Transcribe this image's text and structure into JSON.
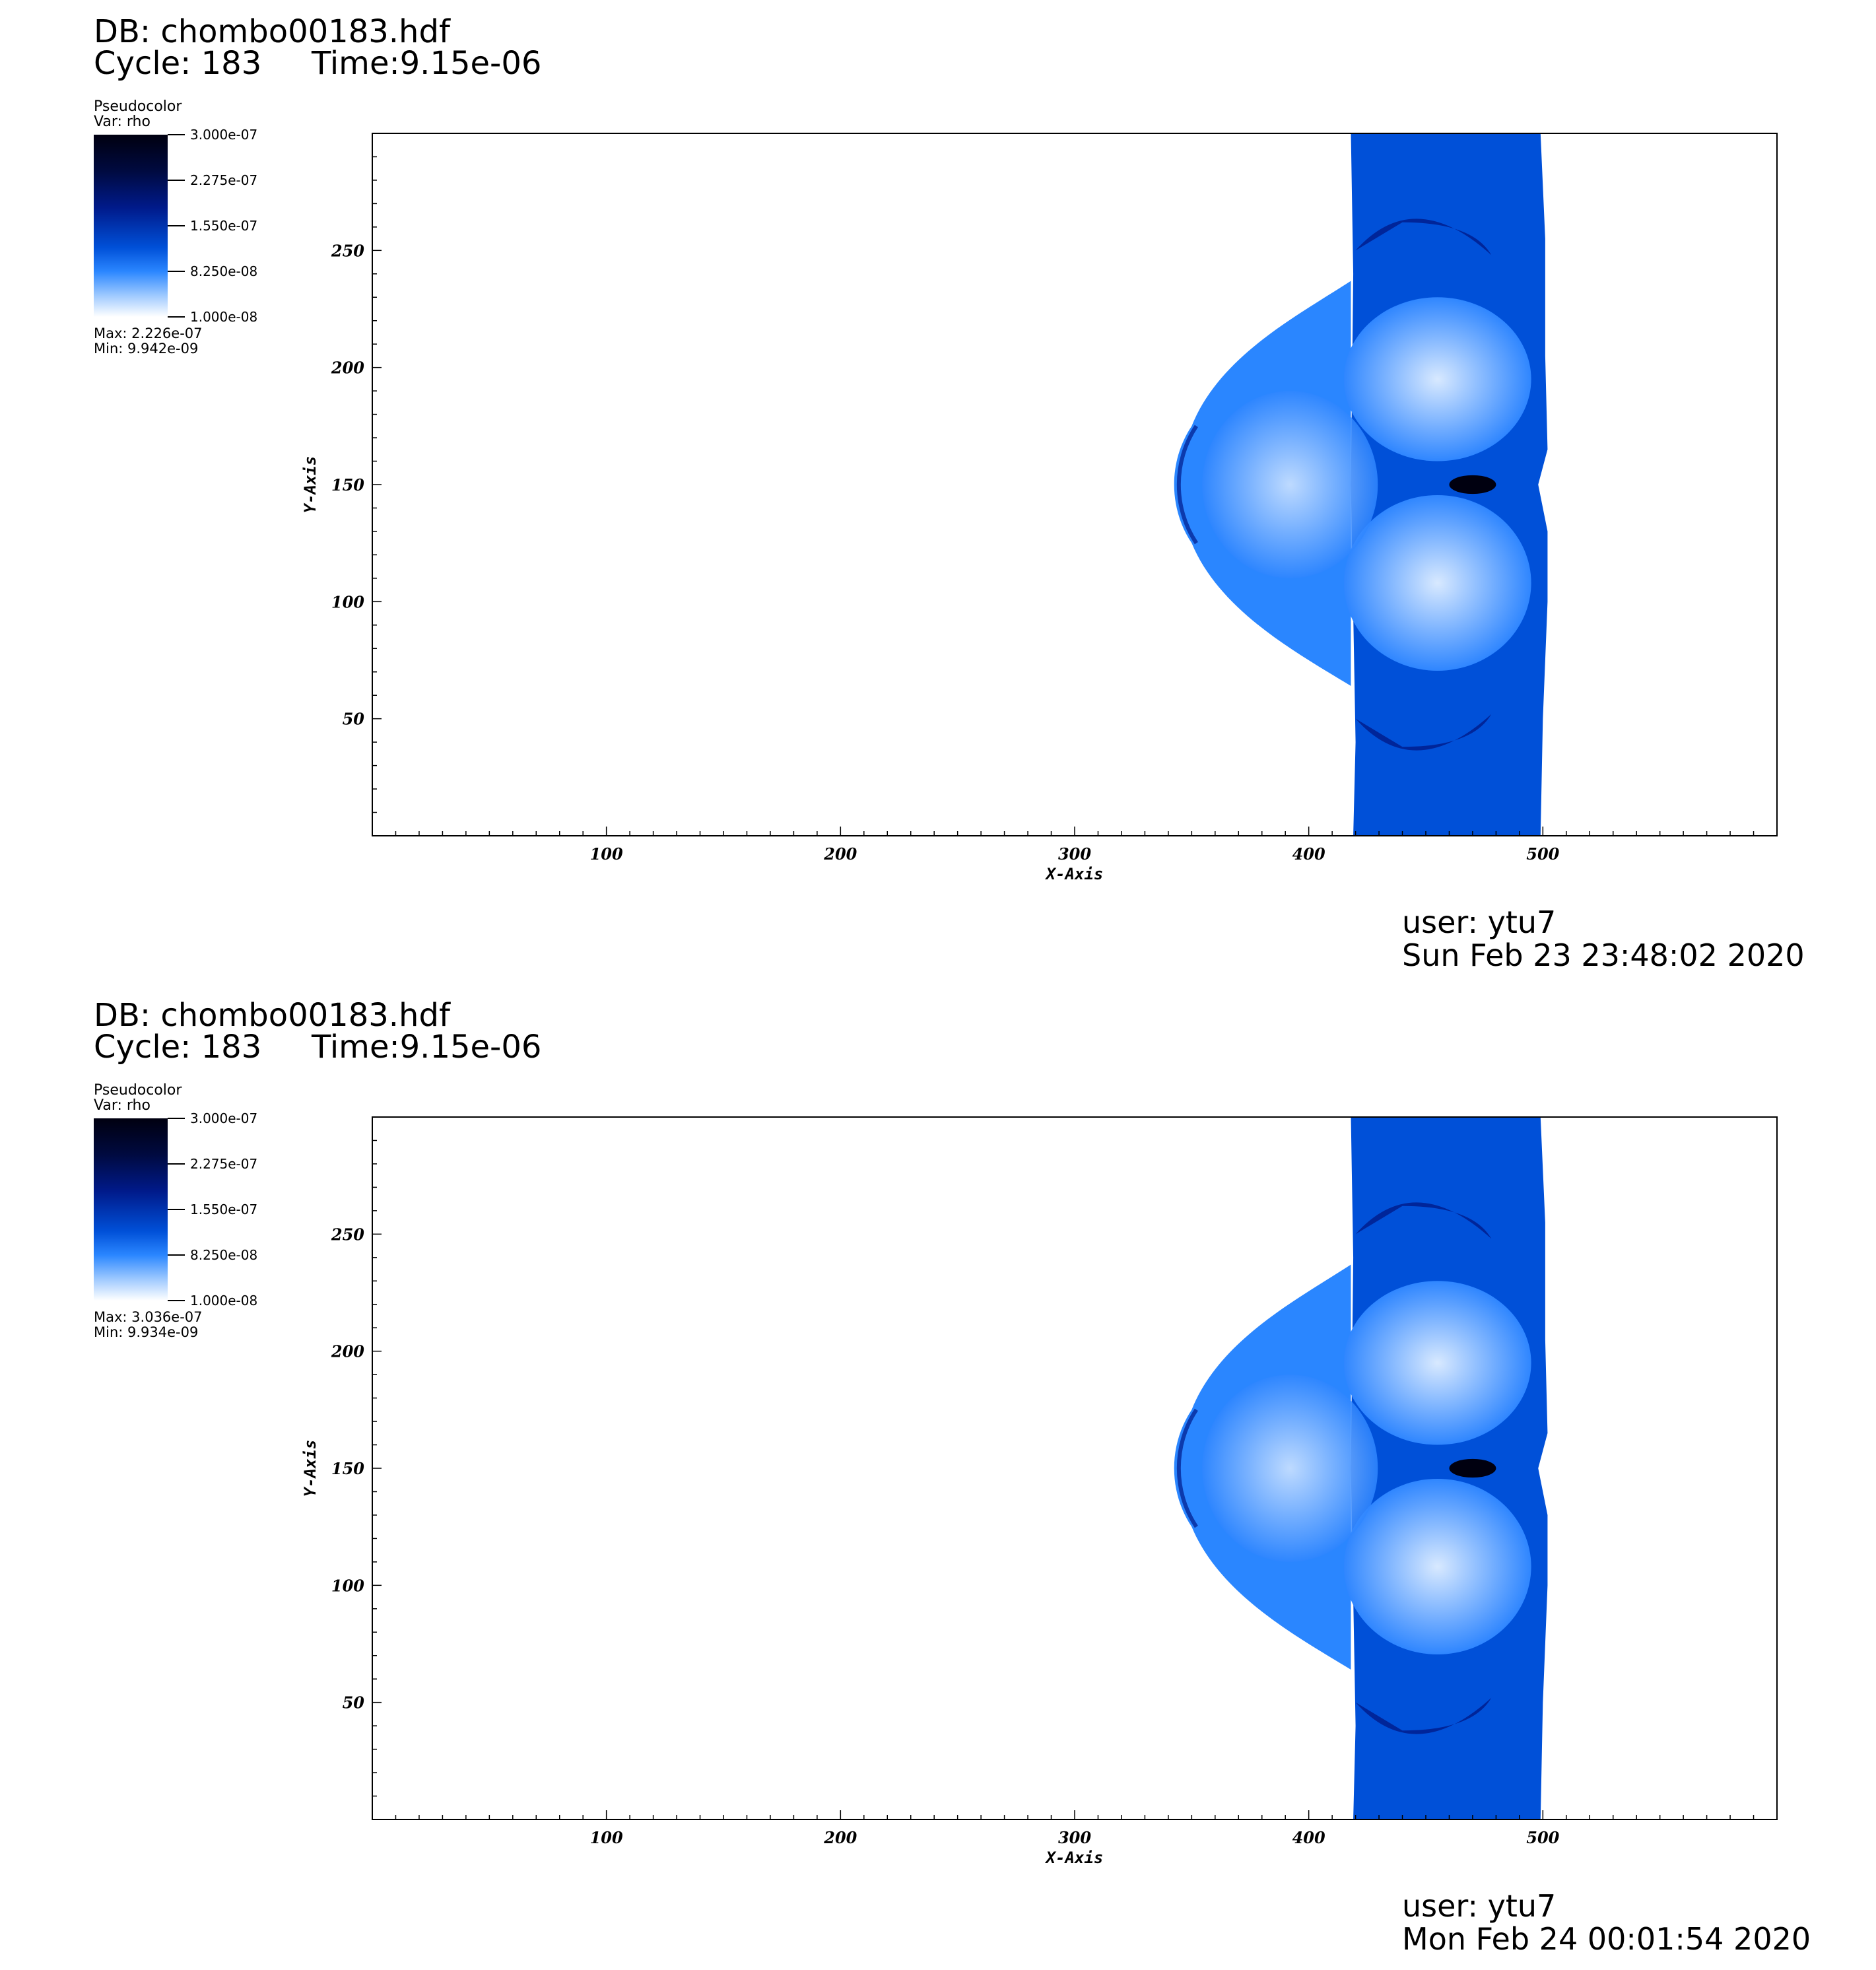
{
  "panels": [
    {
      "db": "DB: chombo00183.hdf",
      "cycle": "Cycle: 183",
      "time": "Time:9.15e-06",
      "legend": {
        "title": "Pseudocolor",
        "var": "Var: rho",
        "ticks": [
          "3.000e-07",
          "2.275e-07",
          "1.550e-07",
          "8.250e-08",
          "1.000e-08"
        ],
        "max": "Max:  2.226e-07",
        "min": "Min:  9.942e-09"
      },
      "user": "user: ytu7",
      "date": "Sun Feb 23 23:48:02 2020"
    },
    {
      "db": "DB: chombo00183.hdf",
      "cycle": "Cycle: 183",
      "time": "Time:9.15e-06",
      "legend": {
        "title": "Pseudocolor",
        "var": "Var: rho",
        "ticks": [
          "3.000e-07",
          "2.275e-07",
          "1.550e-07",
          "8.250e-08",
          "1.000e-08"
        ],
        "max": "Max:  3.036e-07",
        "min": "Min:  9.934e-09"
      },
      "user": "user: ytu7",
      "date": "Mon Feb 24 00:01:54 2020"
    }
  ],
  "chart_data": [
    {
      "type": "heatmap",
      "variable": "rho",
      "xlabel": "X-Axis",
      "ylabel": "Y-Axis",
      "xlim": [
        0,
        600
      ],
      "ylim": [
        0,
        300
      ],
      "xticks": [
        100,
        200,
        300,
        400,
        500
      ],
      "yticks": [
        50,
        100,
        150,
        200,
        250
      ],
      "colormap": [
        "#ffffff",
        "#2a86ff",
        "#0050d8",
        "#001a8a",
        "#000010"
      ],
      "color_range": [
        1e-08,
        3e-07
      ],
      "max": 2.226e-07,
      "min": 9.942e-09
    },
    {
      "type": "heatmap",
      "variable": "rho",
      "xlabel": "X-Axis",
      "ylabel": "Y-Axis",
      "xlim": [
        0,
        600
      ],
      "ylim": [
        0,
        300
      ],
      "xticks": [
        100,
        200,
        300,
        400,
        500
      ],
      "yticks": [
        50,
        100,
        150,
        200,
        250
      ],
      "colormap": [
        "#ffffff",
        "#2a86ff",
        "#0050d8",
        "#001a8a",
        "#000010"
      ],
      "color_range": [
        1e-08,
        3e-07
      ],
      "max": 3.036e-07,
      "min": 9.934e-09
    }
  ]
}
